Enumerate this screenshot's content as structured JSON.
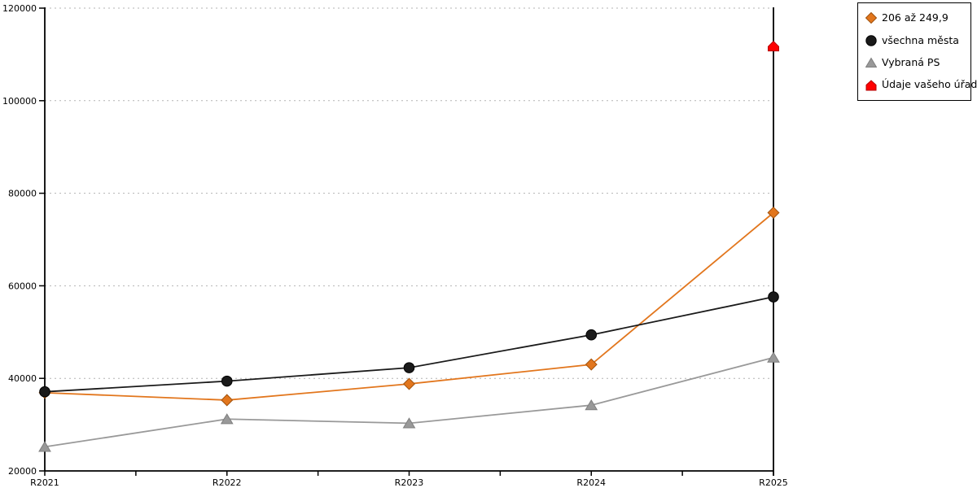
{
  "chart_data": {
    "type": "line",
    "title": "",
    "xlabel": "",
    "ylabel": "",
    "categories": [
      "R2021",
      "R2022",
      "R2023",
      "R2024",
      "R2025"
    ],
    "series": [
      {
        "name": "206 až 249,9",
        "marker": "diamond",
        "color": "#E2761D",
        "edge": "#A0520E",
        "values": [
          36900,
          35300,
          38800,
          43000,
          75800
        ]
      },
      {
        "name": "všechna města",
        "marker": "circle",
        "color": "#1A1A1A",
        "edge": "#000000",
        "values": [
          37100,
          39400,
          42300,
          49400,
          57600
        ]
      },
      {
        "name": "Vybraná PS",
        "marker": "triangle",
        "color": "#999999",
        "edge": "#7F7F7F",
        "values": [
          25200,
          31200,
          30300,
          34200,
          44500
        ]
      },
      {
        "name": "Údaje vašeho úřadu",
        "marker": "house",
        "color": "#FF0000",
        "edge": "#B30000",
        "values": [
          null,
          null,
          null,
          null,
          111800
        ]
      }
    ],
    "ylim": [
      20000,
      120000
    ],
    "yticks": [
      20000,
      40000,
      60000,
      80000,
      100000,
      120000
    ],
    "grid": "horizontal-dotted",
    "legend_position": "top-right",
    "right_boundary_line_at": "R2025"
  },
  "colors": {
    "background": "#FFFFFF",
    "axis": "#000000",
    "grid": "#B3B3B3",
    "tick_label": "#000000"
  }
}
